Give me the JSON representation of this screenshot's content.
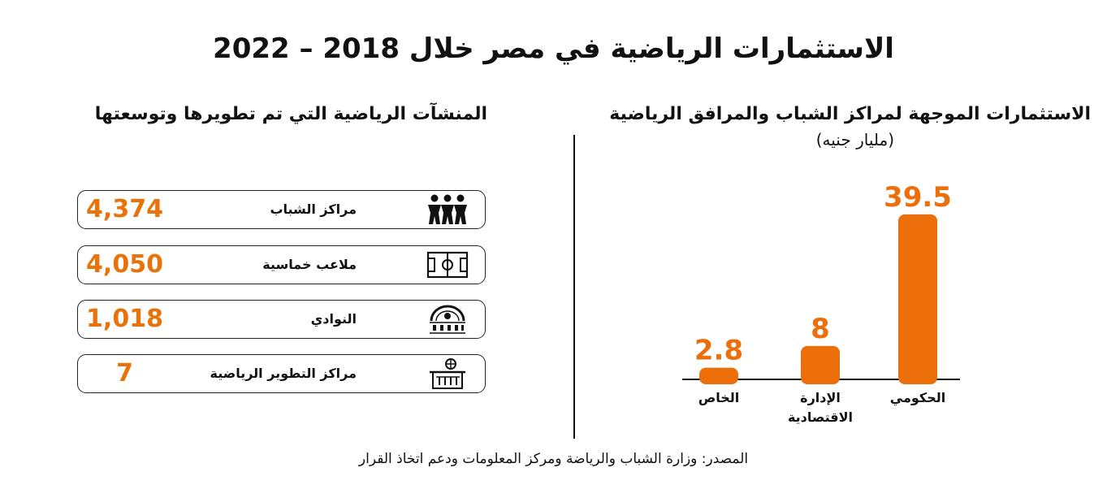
{
  "title": "الاستثمارات الرياضية في مصر خلال 2018 – 2022",
  "colors": {
    "accent": "#ed6f0b",
    "text": "#111111"
  },
  "chart_data": {
    "type": "bar",
    "title": "الاستثمارات الموجهة لمراكز الشباب والمرافق الرياضية",
    "unit": "(مليار جنيه)",
    "categories": [
      "الخاص",
      "الإدارة الاقتصادية",
      "الحكومي"
    ],
    "category_lines": [
      [
        "الخاص"
      ],
      [
        "الإدارة",
        "الاقتصادية"
      ],
      [
        "الحكومي"
      ]
    ],
    "values": [
      2.8,
      8,
      39.5
    ],
    "value_labels": [
      "2.8",
      "8",
      "39.5"
    ],
    "ylim": [
      0,
      42
    ],
    "grid": false,
    "legend": "none"
  },
  "facilities": {
    "title": "المنشآت الرياضية التي تم تطويرها وتوسعتها",
    "items": [
      {
        "label": "مراكز الشباب",
        "value": "4,374",
        "icon": "youth-people-icon"
      },
      {
        "label": "ملاعب خماسية",
        "value": "4,050",
        "icon": "football-field-icon"
      },
      {
        "label": "النوادي",
        "value": "1,018",
        "icon": "sport-club-icon"
      },
      {
        "label": "مراكز التطوير الرياضية",
        "value": "7",
        "icon": "basketball-court-icon"
      }
    ]
  },
  "source": "المصدر: وزارة الشباب والرياضة ومركز المعلومات ودعم اتخاذ القرار"
}
